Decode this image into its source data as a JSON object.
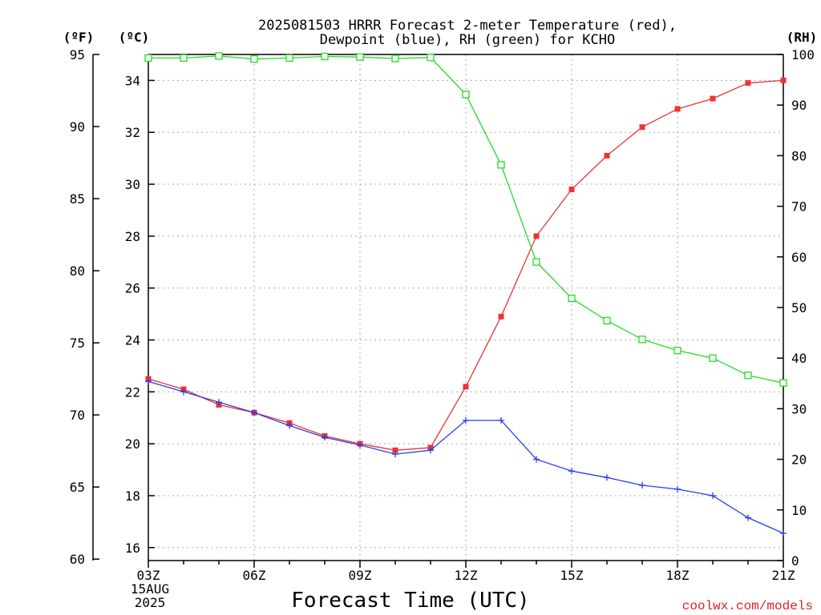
{
  "chart_data": {
    "type": "line",
    "title": "2025081503 HRRR Forecast 2-meter Temperature (red),",
    "subtitle": "Dewpoint (blue), RH (green) for KCHO",
    "xlabel": "Forecast Time (UTC)",
    "unit_labels": {
      "fahrenheit": "(ºF)",
      "celsius": "(ºC)",
      "rh": "(RH)"
    },
    "x": [
      "03Z",
      "04Z",
      "05Z",
      "06Z",
      "07Z",
      "08Z",
      "09Z",
      "10Z",
      "11Z",
      "12Z",
      "13Z",
      "14Z",
      "15Z",
      "16Z",
      "17Z",
      "18Z",
      "19Z",
      "20Z",
      "21Z"
    ],
    "x_tick_labels": [
      "03Z",
      "06Z",
      "09Z",
      "12Z",
      "15Z",
      "18Z",
      "21Z"
    ],
    "date_labels": [
      "15AUG",
      "2025"
    ],
    "celsius_ticks": [
      16,
      18,
      20,
      22,
      24,
      26,
      28,
      30,
      32,
      34
    ],
    "fahrenheit_ticks": [
      60,
      65,
      70,
      75,
      80,
      85,
      90,
      95
    ],
    "rh_ticks": [
      0,
      10,
      20,
      30,
      40,
      50,
      60,
      70,
      80,
      90,
      100
    ],
    "celsius_range": [
      15.5,
      35.0
    ],
    "fahrenheit_range": [
      59.9,
      95.0
    ],
    "rh_range": [
      0,
      100
    ],
    "series": [
      {
        "name": "Temperature",
        "axis": "celsius",
        "color": "#ee3333",
        "marker": "filled-square",
        "values": [
          22.5,
          22.1,
          21.5,
          21.2,
          20.8,
          20.3,
          20.0,
          19.75,
          19.85,
          22.2,
          24.9,
          28.0,
          29.8,
          31.1,
          32.2,
          32.9,
          33.3,
          33.9,
          34.0
        ]
      },
      {
        "name": "Dewpoint",
        "axis": "celsius",
        "color": "#2a3fe8",
        "marker": "plus",
        "values": [
          22.4,
          22.0,
          21.6,
          21.2,
          20.7,
          20.25,
          19.95,
          19.6,
          19.75,
          20.9,
          20.9,
          19.4,
          18.95,
          18.7,
          18.4,
          18.25,
          18.0,
          17.15,
          16.55
        ]
      },
      {
        "name": "RH",
        "axis": "rh",
        "color": "#22dd22",
        "marker": "open-square",
        "values": [
          99.3,
          99.3,
          99.7,
          99.1,
          99.3,
          99.6,
          99.5,
          99.2,
          99.4,
          92.1,
          78.2,
          59.0,
          51.8,
          47.4,
          43.7,
          41.5,
          40.0,
          36.6,
          35.1
        ]
      }
    ]
  },
  "footer": {
    "credit": "coolwx.com/models"
  }
}
